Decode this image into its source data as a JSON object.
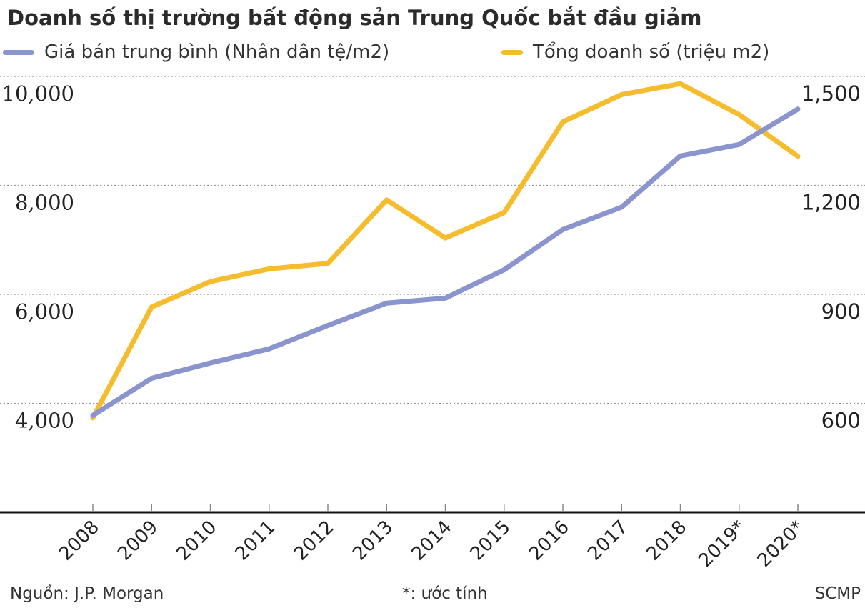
{
  "title": "Doanh số thị trường bất động sản Trung Quốc bắt đầu giảm",
  "legend": [
    {
      "label": "Giá bán trung bình (Nhân dân tệ/m2)",
      "color": "#8b95cd"
    },
    {
      "label": "Tổng doanh số (triệu m2)",
      "color": "#f5bd2e"
    }
  ],
  "footer": {
    "source": "Nguồn: J.P. Morgan",
    "note": "*: ước tính",
    "brand": "SCMP"
  },
  "chart_data": {
    "type": "line",
    "title": "Doanh số thị trường bất động sản Trung Quốc bắt đầu giảm",
    "xlabel": "",
    "ylabel": "Giá bán trung bình (Nhân dân tệ/m2)",
    "ylabel_right": "Tổng doanh số (triệu m2)",
    "categories": [
      "2008",
      "2009",
      "2010",
      "2011",
      "2012",
      "2013",
      "2014",
      "2015",
      "2016",
      "2017",
      "2018",
      "2019*",
      "2020*"
    ],
    "series": [
      {
        "name": "Giá bán trung bình (Nhân dân tệ/m2)",
        "axis": "left",
        "color": "#8b95cd",
        "values": [
          3780,
          4460,
          4740,
          5000,
          5430,
          5840,
          5930,
          6450,
          7190,
          7600,
          8540,
          8750,
          9400
        ]
      },
      {
        "name": "Tổng doanh số (triệu m2)",
        "axis": "right",
        "color": "#f5bd2e",
        "values": [
          560,
          865,
          935,
          970,
          985,
          1160,
          1055,
          1125,
          1375,
          1450,
          1480,
          1395,
          1280
        ]
      }
    ],
    "ylim": [
      2000,
      10000
    ],
    "ylim_right": [
      300,
      1500
    ],
    "yticks_left": [
      "10,000",
      "8,000",
      "6,000",
      "4,000"
    ],
    "yticks_right": [
      "1,500",
      "1,200",
      "900",
      "600"
    ],
    "grid": "dotted horizontal",
    "legend_position": "top",
    "annotations": [
      "*: ước tính"
    ]
  }
}
